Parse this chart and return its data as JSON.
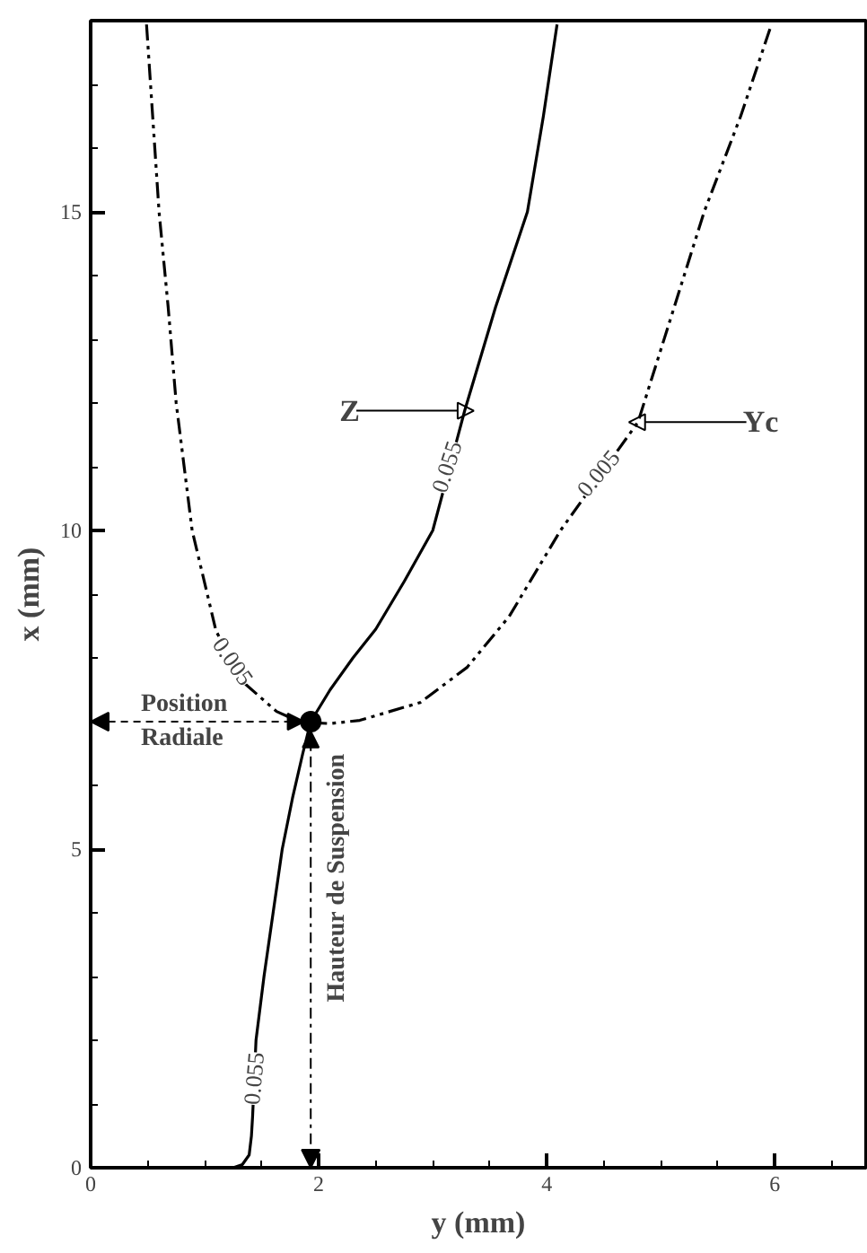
{
  "chart_data": {
    "type": "line",
    "xlabel": "y (mm)",
    "ylabel": "x (mm)",
    "xlim": [
      0,
      6.8
    ],
    "ylim": [
      0,
      18
    ],
    "xticks": [
      0,
      {
        "value": 0.5,
        "label": null
      },
      {
        "value": 1,
        "label": null
      },
      {
        "value": 1.5,
        "label": null
      },
      2,
      {
        "value": 2.5,
        "label": null
      },
      {
        "value": 3,
        "label": null
      },
      {
        "value": 3.5,
        "label": null
      },
      4,
      {
        "value": 4.5,
        "label": null
      },
      {
        "value": 5,
        "label": null
      },
      {
        "value": 5.5,
        "label": null
      },
      6,
      {
        "value": 6.5,
        "label": null
      }
    ],
    "yticks": [
      0,
      {
        "value": 1,
        "label": null
      },
      {
        "value": 2,
        "label": null
      },
      {
        "value": 3,
        "label": null
      },
      {
        "value": 4,
        "label": null
      },
      5,
      {
        "value": 6,
        "label": null
      },
      {
        "value": 7,
        "label": null
      },
      {
        "value": 8,
        "label": null
      },
      {
        "value": 9,
        "label": null
      },
      10,
      {
        "value": 11,
        "label": null
      },
      {
        "value": 12,
        "label": null
      },
      {
        "value": 13,
        "label": null
      },
      {
        "value": 14,
        "label": null
      },
      15,
      {
        "value": 16,
        "label": null
      },
      {
        "value": 17,
        "label": null
      }
    ],
    "grid": false,
    "series": [
      {
        "color": "#000000",
        "line_style": "solid",
        "x": [
          1.25,
          1.33,
          1.39,
          1.41,
          1.42,
          1.45,
          1.52,
          1.6,
          1.68,
          1.77,
          1.86,
          1.93,
          2.1,
          2.3,
          2.5,
          2.75,
          3.0,
          3.28,
          3.55,
          3.83,
          3.97,
          4.09
        ],
        "values": [
          0,
          0.05,
          0.2,
          0.5,
          0.8,
          2.0,
          3.0,
          4.0,
          5.0,
          5.8,
          6.5,
          7.0,
          7.5,
          8.0,
          8.45,
          9.2,
          10.0,
          11.88,
          13.5,
          15.0,
          16.5,
          17.94
        ]
      },
      {
        "color": "#000000",
        "line_style": "dashdot",
        "x": [
          0.49,
          0.6,
          0.68,
          0.75,
          0.89,
          1.1,
          1.35,
          1.63,
          1.84,
          2.1,
          2.36,
          2.89,
          3.3,
          3.67,
          4.12,
          4.8,
          5.38,
          5.7,
          5.97
        ],
        "values": [
          17.94,
          15.0,
          13.5,
          12.0,
          10.0,
          8.42,
          7.6,
          7.16,
          6.99,
          6.97,
          7.02,
          7.3,
          7.85,
          8.65,
          10.0,
          11.7,
          15.0,
          16.5,
          17.94
        ]
      },
      {
        "type": "scatter",
        "marker": "circle",
        "color": "#000000",
        "x": [
          1.93
        ],
        "values": [
          7
        ]
      }
    ],
    "annotations": [
      "Position Radiale",
      {
        "text": "Hauteur de Suspension",
        "x": 1.93,
        "y": 7
      },
      "Z",
      "Yc",
      {
        "text": "0.055",
        "x": 3.12,
        "y": 11.0
      },
      {
        "text": "0.005",
        "x": 4.45,
        "y": 10.9
      },
      {
        "text": "0.005",
        "x": 1.25,
        "y": 7.95
      },
      {
        "text": "0.055",
        "x": 1.43,
        "y": 1.4
      }
    ]
  }
}
